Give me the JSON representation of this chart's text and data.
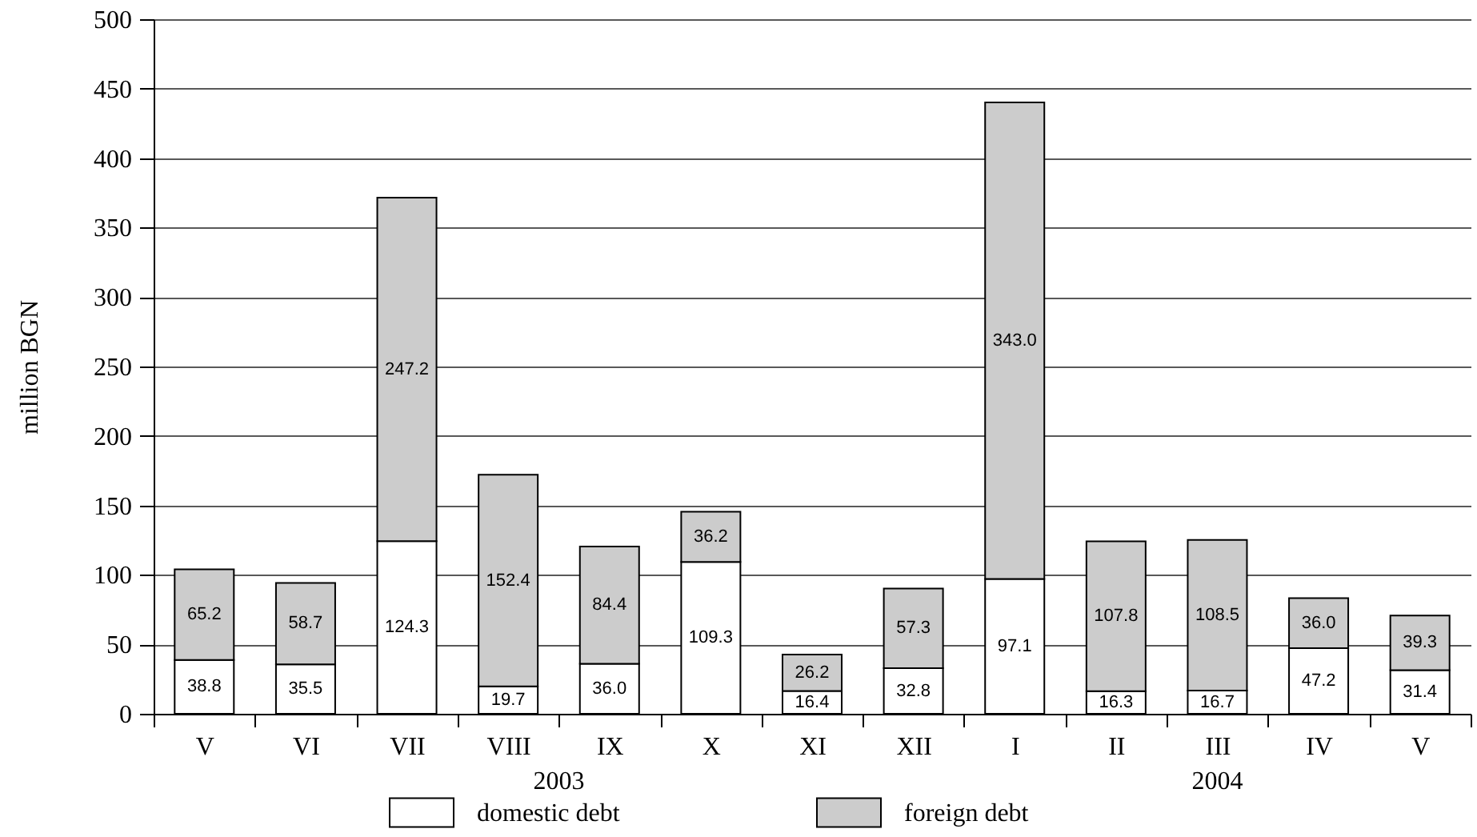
{
  "chart_data": {
    "type": "bar",
    "stacked": true,
    "ylabel": "million BGN",
    "categories": [
      "V",
      "VI",
      "VII",
      "VIII",
      "IX",
      "X",
      "XI",
      "XII",
      "I",
      "II",
      "III",
      "IV",
      "V"
    ],
    "series": [
      {
        "name": "domestic debt",
        "color": "#ffffff",
        "values": [
          38.8,
          35.5,
          124.3,
          19.7,
          36.0,
          109.3,
          16.4,
          32.8,
          97.1,
          16.3,
          16.7,
          47.2,
          31.4
        ],
        "value_labels": [
          "38.8",
          "35.5",
          "124.3",
          "19.7",
          "36.0",
          "109.3",
          "16.4",
          "32.8",
          "97.1",
          "16.3",
          "16.7",
          "47.2",
          "31.4"
        ]
      },
      {
        "name": "foreign debt",
        "color": "#cccccc",
        "values": [
          65.2,
          58.7,
          247.2,
          152.4,
          84.4,
          36.2,
          26.2,
          57.3,
          343.0,
          107.8,
          108.5,
          36.0,
          39.3
        ],
        "value_labels": [
          "65.2",
          "58.7",
          "247.2",
          "152.4",
          "84.4",
          "36.2",
          "26.2",
          "57.3",
          "343.0",
          "107.8",
          "108.5",
          "36.0",
          "39.3"
        ]
      }
    ],
    "ylim": [
      0,
      500
    ],
    "yticks": [
      0,
      50,
      100,
      150,
      200,
      250,
      300,
      350,
      400,
      450,
      500
    ],
    "grid": "y",
    "legend": "bottom",
    "annotations": [
      "2003",
      "2004"
    ]
  }
}
